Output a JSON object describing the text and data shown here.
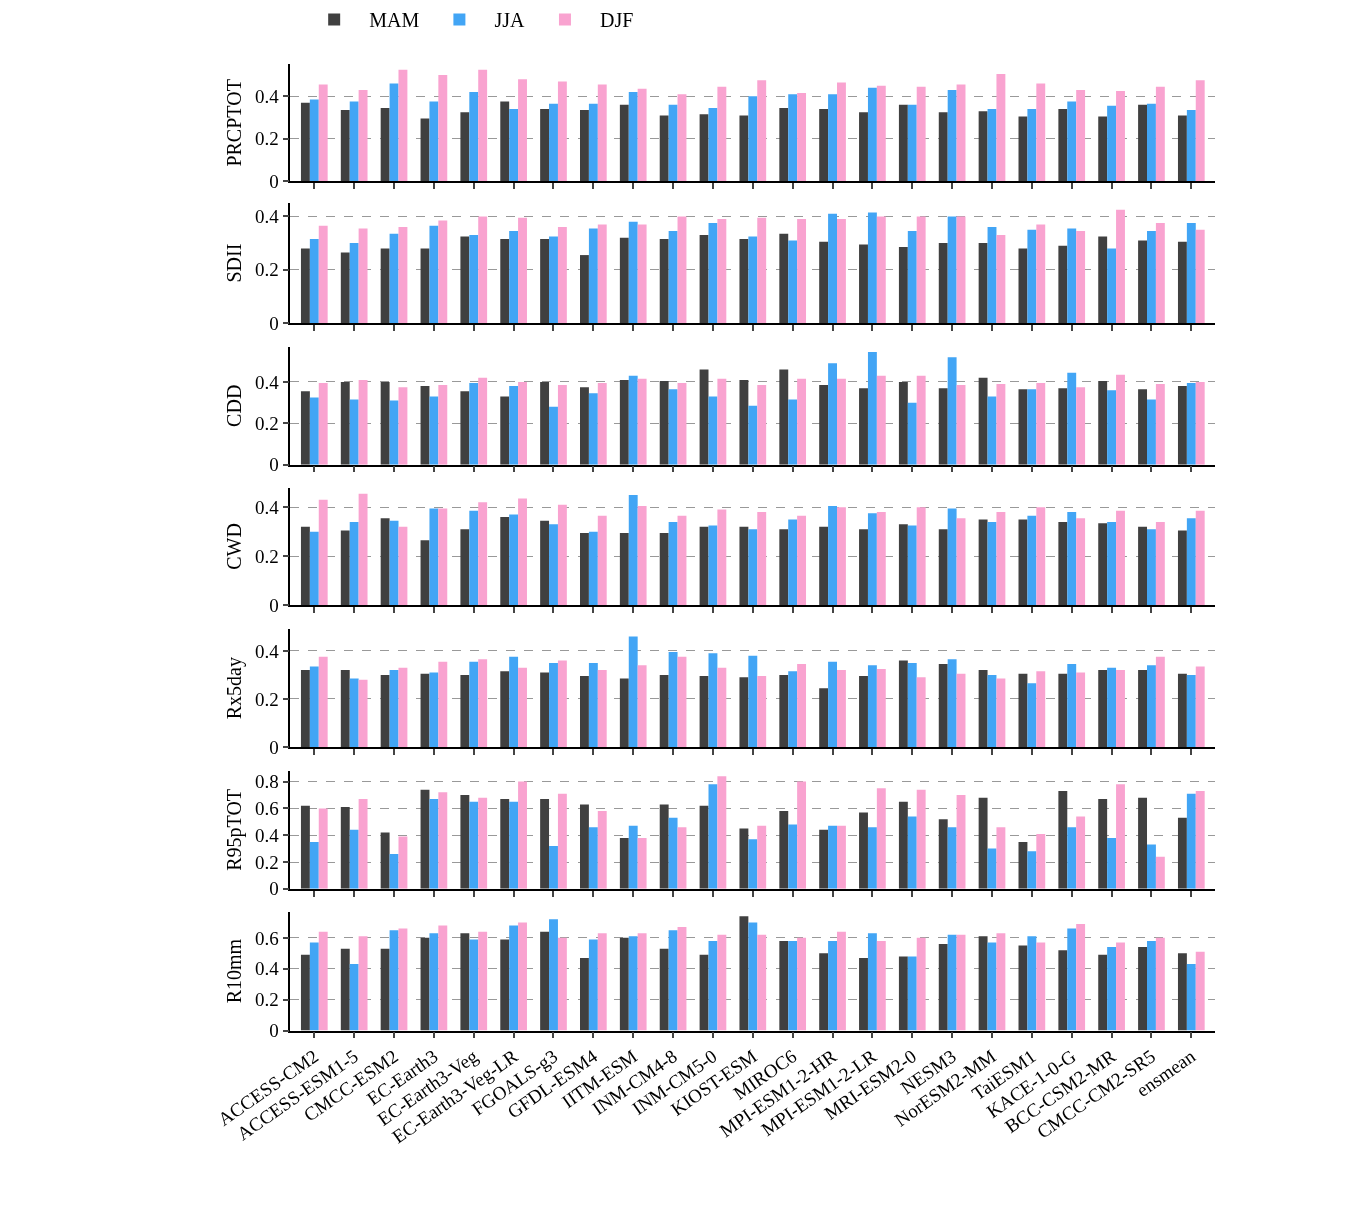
{
  "chart_data": [
    {
      "type": "bar",
      "ylabel": "PRCPTOT",
      "ylim": [
        0,
        0.55
      ],
      "yticks": [
        0,
        0.2,
        0.4
      ],
      "grid": "y",
      "legend": "top",
      "tick_labels": "y",
      "series": [
        {
          "name": "MAM",
          "color": "#404040",
          "values": [
            0.37,
            0.335,
            0.345,
            0.295,
            0.325,
            0.375,
            0.34,
            0.335,
            0.36,
            0.31,
            0.315,
            0.31,
            0.345,
            0.34,
            0.325,
            0.36,
            0.325,
            0.33,
            0.305,
            0.34,
            0.305,
            0.36,
            0.31
          ]
        },
        {
          "name": "JJA",
          "color": "#42a5f5",
          "values": [
            0.385,
            0.375,
            0.46,
            0.375,
            0.42,
            0.34,
            0.365,
            0.365,
            0.42,
            0.36,
            0.345,
            0.4,
            0.41,
            0.41,
            0.44,
            0.36,
            0.43,
            0.34,
            0.34,
            0.375,
            0.355,
            0.365,
            0.335
          ]
        },
        {
          "name": "DJF",
          "color": "#f9a3d0",
          "values": [
            0.455,
            0.43,
            0.525,
            0.5,
            0.525,
            0.48,
            0.47,
            0.455,
            0.435,
            0.41,
            0.445,
            0.475,
            0.415,
            0.465,
            0.45,
            0.445,
            0.455,
            0.505,
            0.46,
            0.43,
            0.425,
            0.445,
            0.475
          ]
        }
      ]
    },
    {
      "type": "bar",
      "ylabel": "SDII",
      "ylim": [
        0,
        0.45
      ],
      "yticks": [
        0,
        0.2,
        0.4
      ],
      "grid": "y",
      "tick_labels": "y",
      "series": [
        {
          "color": "#404040",
          "values": [
            0.28,
            0.265,
            0.28,
            0.28,
            0.325,
            0.315,
            0.315,
            0.255,
            0.32,
            0.315,
            0.33,
            0.315,
            0.335,
            0.305,
            0.295,
            0.285,
            0.3,
            0.3,
            0.28,
            0.29,
            0.325,
            0.31,
            0.305
          ]
        },
        {
          "color": "#42a5f5",
          "values": [
            0.315,
            0.3,
            0.335,
            0.365,
            0.33,
            0.345,
            0.325,
            0.355,
            0.38,
            0.345,
            0.375,
            0.325,
            0.31,
            0.41,
            0.415,
            0.345,
            0.4,
            0.36,
            0.35,
            0.355,
            0.28,
            0.345,
            0.375
          ]
        },
        {
          "color": "#f9a3d0",
          "values": [
            0.365,
            0.355,
            0.36,
            0.385,
            0.4,
            0.395,
            0.36,
            0.37,
            0.37,
            0.4,
            0.39,
            0.395,
            0.39,
            0.39,
            0.4,
            0.4,
            0.4,
            0.33,
            0.37,
            0.345,
            0.425,
            0.375,
            0.35
          ]
        }
      ]
    },
    {
      "type": "bar",
      "ylabel": "CDD",
      "ylim": [
        0,
        0.57
      ],
      "yticks": [
        0,
        0.2,
        0.4
      ],
      "grid": "y",
      "tick_labels": "y",
      "series": [
        {
          "color": "#404040",
          "values": [
            0.355,
            0.4,
            0.4,
            0.38,
            0.355,
            0.33,
            0.4,
            0.375,
            0.41,
            0.405,
            0.46,
            0.41,
            0.46,
            0.385,
            0.37,
            0.4,
            0.37,
            0.42,
            0.365,
            0.37,
            0.405,
            0.365,
            0.38
          ]
        },
        {
          "color": "#42a5f5",
          "values": [
            0.325,
            0.315,
            0.31,
            0.33,
            0.395,
            0.38,
            0.28,
            0.345,
            0.43,
            0.365,
            0.33,
            0.285,
            0.315,
            0.49,
            0.545,
            0.3,
            0.52,
            0.33,
            0.365,
            0.445,
            0.36,
            0.315,
            0.395
          ]
        },
        {
          "color": "#f9a3d0",
          "values": [
            0.395,
            0.41,
            0.375,
            0.385,
            0.42,
            0.4,
            0.385,
            0.395,
            0.415,
            0.395,
            0.415,
            0.385,
            0.415,
            0.415,
            0.43,
            0.43,
            0.385,
            0.39,
            0.395,
            0.375,
            0.435,
            0.39,
            0.4
          ]
        }
      ]
    },
    {
      "type": "bar",
      "ylabel": "CWD",
      "ylim": [
        0,
        0.48
      ],
      "yticks": [
        0,
        0.2,
        0.4
      ],
      "grid": "y",
      "tick_labels": "y",
      "series": [
        {
          "color": "#404040",
          "values": [
            0.32,
            0.305,
            0.355,
            0.265,
            0.31,
            0.36,
            0.345,
            0.295,
            0.295,
            0.295,
            0.32,
            0.32,
            0.31,
            0.32,
            0.31,
            0.33,
            0.31,
            0.35,
            0.35,
            0.34,
            0.335,
            0.32,
            0.305
          ]
        },
        {
          "color": "#42a5f5",
          "values": [
            0.3,
            0.34,
            0.345,
            0.395,
            0.385,
            0.37,
            0.33,
            0.3,
            0.45,
            0.34,
            0.325,
            0.31,
            0.35,
            0.405,
            0.375,
            0.325,
            0.395,
            0.34,
            0.365,
            0.38,
            0.34,
            0.31,
            0.355
          ]
        },
        {
          "color": "#f9a3d0",
          "values": [
            0.43,
            0.455,
            0.32,
            0.395,
            0.42,
            0.435,
            0.41,
            0.365,
            0.405,
            0.365,
            0.39,
            0.38,
            0.365,
            0.4,
            0.38,
            0.4,
            0.355,
            0.38,
            0.4,
            0.355,
            0.385,
            0.34,
            0.385
          ]
        }
      ]
    },
    {
      "type": "bar",
      "ylabel": "Rx5day",
      "ylim": [
        0,
        0.49
      ],
      "yticks": [
        0,
        0.2,
        0.4
      ],
      "grid": "y",
      "tick_labels": "y",
      "series": [
        {
          "color": "#404040",
          "values": [
            0.32,
            0.32,
            0.3,
            0.305,
            0.3,
            0.315,
            0.31,
            0.295,
            0.285,
            0.3,
            0.295,
            0.29,
            0.3,
            0.245,
            0.295,
            0.36,
            0.345,
            0.32,
            0.305,
            0.305,
            0.32,
            0.32,
            0.305
          ]
        },
        {
          "color": "#42a5f5",
          "values": [
            0.335,
            0.285,
            0.32,
            0.31,
            0.355,
            0.375,
            0.35,
            0.35,
            0.46,
            0.395,
            0.39,
            0.38,
            0.315,
            0.355,
            0.34,
            0.35,
            0.365,
            0.3,
            0.265,
            0.345,
            0.33,
            0.34,
            0.3
          ]
        },
        {
          "color": "#f9a3d0",
          "values": [
            0.375,
            0.28,
            0.33,
            0.355,
            0.365,
            0.33,
            0.36,
            0.32,
            0.34,
            0.375,
            0.33,
            0.295,
            0.345,
            0.32,
            0.325,
            0.29,
            0.305,
            0.285,
            0.315,
            0.31,
            0.32,
            0.375,
            0.335
          ]
        }
      ]
    },
    {
      "type": "bar",
      "ylabel": "R95pTOT",
      "ylim": [
        0,
        0.88
      ],
      "yticks": [
        0,
        0.2,
        0.4,
        0.6,
        0.8
      ],
      "grid": "y",
      "tick_labels": "y",
      "series": [
        {
          "color": "#404040",
          "values": [
            0.62,
            0.61,
            0.42,
            0.74,
            0.7,
            0.67,
            0.67,
            0.63,
            0.38,
            0.63,
            0.62,
            0.45,
            0.58,
            0.44,
            0.57,
            0.65,
            0.52,
            0.68,
            0.35,
            0.73,
            0.67,
            0.68,
            0.53
          ]
        },
        {
          "color": "#42a5f5",
          "values": [
            0.35,
            0.44,
            0.26,
            0.67,
            0.65,
            0.65,
            0.32,
            0.46,
            0.47,
            0.53,
            0.78,
            0.37,
            0.48,
            0.47,
            0.46,
            0.54,
            0.46,
            0.3,
            0.28,
            0.46,
            0.38,
            0.33,
            0.71
          ]
        },
        {
          "color": "#f9a3d0",
          "values": [
            0.6,
            0.67,
            0.39,
            0.72,
            0.68,
            0.8,
            0.71,
            0.58,
            0.38,
            0.46,
            0.84,
            0.47,
            0.8,
            0.47,
            0.75,
            0.74,
            0.7,
            0.46,
            0.41,
            0.54,
            0.78,
            0.24,
            0.73
          ]
        }
      ]
    },
    {
      "type": "bar",
      "ylabel": "R10mm",
      "categories": [
        "ACCESS-CM2",
        "ACCESS-ESM1-5",
        "CMCC-ESM2",
        "EC-Earth3",
        "EC-Earth3-Veg",
        "EC-Earth3-Veg-LR",
        "FGOALS-g3",
        "GFDL-ESM4",
        "IITM-ESM",
        "INM-CM4-8",
        "INM-CM5-0",
        "KIOST-ESM",
        "MIROC6",
        "MPI-ESM1-2-HR",
        "MPI-ESM1-2-LR",
        "MRI-ESM2-0",
        "NESM3",
        "NorESM2-MM",
        "TaiESM1",
        "KACE-1-0-G",
        "BCC-CSM2-MR",
        "CMCC-CM2-SR5",
        "ensmean"
      ],
      "ylim": [
        0,
        0.77
      ],
      "yticks": [
        0,
        0.2,
        0.4,
        0.6
      ],
      "grid": "y",
      "series": [
        {
          "color": "#404040",
          "values": [
            0.49,
            0.53,
            0.53,
            0.6,
            0.63,
            0.59,
            0.64,
            0.47,
            0.6,
            0.53,
            0.49,
            0.74,
            0.58,
            0.5,
            0.47,
            0.48,
            0.56,
            0.61,
            0.55,
            0.52,
            0.49,
            0.54,
            0.5
          ]
        },
        {
          "color": "#42a5f5",
          "values": [
            0.57,
            0.43,
            0.65,
            0.63,
            0.59,
            0.68,
            0.72,
            0.59,
            0.61,
            0.65,
            0.58,
            0.7,
            0.58,
            0.58,
            0.63,
            0.48,
            0.62,
            0.57,
            0.61,
            0.66,
            0.54,
            0.58,
            0.43
          ]
        },
        {
          "color": "#f9a3d0",
          "values": [
            0.64,
            0.61,
            0.66,
            0.68,
            0.64,
            0.7,
            0.6,
            0.63,
            0.63,
            0.67,
            0.62,
            0.62,
            0.6,
            0.64,
            0.58,
            0.6,
            0.62,
            0.63,
            0.57,
            0.69,
            0.57,
            0.6,
            0.51
          ]
        }
      ]
    }
  ]
}
